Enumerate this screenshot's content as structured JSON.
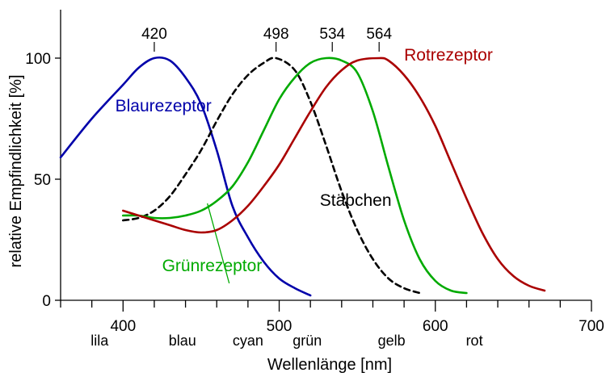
{
  "chart_data": {
    "type": "line",
    "xlabel": "Wellenlänge [nm]",
    "ylabel": "relative Empfindlichkeit [%]",
    "xlim": [
      360,
      700
    ],
    "ylim": [
      0,
      100
    ],
    "x_ticks": [
      400,
      500,
      600,
      700
    ],
    "x_tick_labels": [
      "400",
      "500",
      "600",
      "700"
    ],
    "y_ticks": [
      0,
      50,
      100
    ],
    "y_tick_labels": [
      "0",
      "50",
      "100"
    ],
    "color_bands": [
      {
        "label": "lila",
        "x": 385
      },
      {
        "label": "blau",
        "x": 438
      },
      {
        "label": "cyan",
        "x": 480
      },
      {
        "label": "grün",
        "x": 518
      },
      {
        "label": "gelb",
        "x": 572
      },
      {
        "label": "rot",
        "x": 625
      }
    ],
    "peak_labels": [
      {
        "label": "420",
        "x": 420
      },
      {
        "label": "498",
        "x": 498
      },
      {
        "label": "534",
        "x": 534
      },
      {
        "label": "564",
        "x": 564
      }
    ],
    "series": [
      {
        "name": "Blaurezeptor",
        "color": "#0000aa",
        "dashed": false,
        "label_pos": {
          "x": 395,
          "y": 78
        },
        "label_anchor": "start",
        "points": [
          [
            360,
            59
          ],
          [
            380,
            75
          ],
          [
            400,
            89
          ],
          [
            410,
            96
          ],
          [
            420,
            100
          ],
          [
            430,
            99
          ],
          [
            440,
            92
          ],
          [
            450,
            81
          ],
          [
            460,
            62
          ],
          [
            470,
            39
          ],
          [
            480,
            26
          ],
          [
            490,
            16
          ],
          [
            500,
            9
          ],
          [
            510,
            5
          ],
          [
            520,
            2
          ]
        ]
      },
      {
        "name": "Stäbchen",
        "color": "#000000",
        "dashed": true,
        "label_pos": {
          "x": 526,
          "y": 39
        },
        "label_anchor": "start",
        "points": [
          [
            400,
            33
          ],
          [
            410,
            34
          ],
          [
            420,
            37
          ],
          [
            430,
            43
          ],
          [
            440,
            52
          ],
          [
            450,
            62
          ],
          [
            460,
            74
          ],
          [
            470,
            85
          ],
          [
            480,
            93
          ],
          [
            490,
            98
          ],
          [
            498,
            100
          ],
          [
            510,
            95
          ],
          [
            520,
            82
          ],
          [
            530,
            64
          ],
          [
            540,
            45
          ],
          [
            550,
            29
          ],
          [
            560,
            17
          ],
          [
            570,
            9
          ],
          [
            580,
            5
          ],
          [
            590,
            3
          ]
        ]
      },
      {
        "name": "Grünrezeptor",
        "color": "#00aa00",
        "dashed": false,
        "label_pos": {
          "x": 425,
          "y": 12
        },
        "label_anchor": "start",
        "leader": [
          [
            454,
            40
          ],
          [
            468,
            7
          ]
        ],
        "points": [
          [
            400,
            35
          ],
          [
            410,
            35
          ],
          [
            420,
            34
          ],
          [
            430,
            34
          ],
          [
            440,
            35
          ],
          [
            450,
            37
          ],
          [
            460,
            41
          ],
          [
            470,
            47
          ],
          [
            480,
            57
          ],
          [
            490,
            70
          ],
          [
            500,
            83
          ],
          [
            510,
            92
          ],
          [
            520,
            98
          ],
          [
            530,
            100
          ],
          [
            540,
            99
          ],
          [
            550,
            94
          ],
          [
            560,
            78
          ],
          [
            570,
            55
          ],
          [
            580,
            33
          ],
          [
            590,
            17
          ],
          [
            600,
            8
          ],
          [
            610,
            4
          ],
          [
            620,
            3
          ]
        ]
      },
      {
        "name": "Rotrezeptor",
        "color": "#aa0000",
        "dashed": false,
        "label_pos": {
          "x": 580,
          "y": 99
        },
        "label_anchor": "start",
        "points": [
          [
            400,
            37
          ],
          [
            410,
            35
          ],
          [
            420,
            33
          ],
          [
            430,
            31
          ],
          [
            440,
            29
          ],
          [
            450,
            28
          ],
          [
            460,
            29
          ],
          [
            470,
            33
          ],
          [
            480,
            39
          ],
          [
            490,
            47
          ],
          [
            500,
            56
          ],
          [
            510,
            67
          ],
          [
            520,
            78
          ],
          [
            530,
            88
          ],
          [
            540,
            95
          ],
          [
            550,
            99
          ],
          [
            564,
            100
          ],
          [
            570,
            99
          ],
          [
            580,
            93
          ],
          [
            590,
            84
          ],
          [
            600,
            72
          ],
          [
            610,
            57
          ],
          [
            620,
            42
          ],
          [
            630,
            28
          ],
          [
            640,
            17
          ],
          [
            650,
            10
          ],
          [
            660,
            6
          ],
          [
            670,
            4
          ]
        ]
      }
    ]
  }
}
